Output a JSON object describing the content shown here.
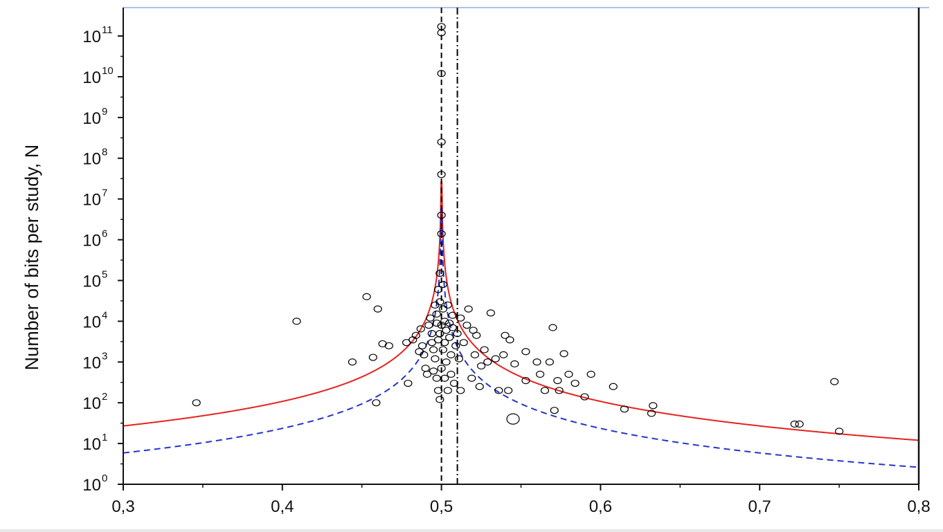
{
  "chart_data": {
    "type": "scatter",
    "title": "",
    "xlabel": "",
    "ylabel": "Number of bits per study, N",
    "xlim": [
      0.3,
      0.8
    ],
    "ylim": [
      1,
      100000000000
    ],
    "y_scale": "log",
    "x_ticks": [
      {
        "value": 0.3,
        "label": "0,3"
      },
      {
        "value": 0.4,
        "label": "0,4"
      },
      {
        "value": 0.5,
        "label": "0,5"
      },
      {
        "value": 0.6,
        "label": "0,6"
      },
      {
        "value": 0.7,
        "label": "0,7"
      },
      {
        "value": 0.8,
        "label": "0,8"
      }
    ],
    "y_ticks": [
      {
        "value": 1,
        "base": "10",
        "exp": "0"
      },
      {
        "value": 10,
        "base": "10",
        "exp": "1"
      },
      {
        "value": 100,
        "base": "10",
        "exp": "2"
      },
      {
        "value": 1000,
        "base": "10",
        "exp": "3"
      },
      {
        "value": 10000,
        "base": "10",
        "exp": "4"
      },
      {
        "value": 100000,
        "base": "10",
        "exp": "5"
      },
      {
        "value": 1000000,
        "base": "10",
        "exp": "6"
      },
      {
        "value": 10000000,
        "base": "10",
        "exp": "7"
      },
      {
        "value": 100000000,
        "base": "10",
        "exp": "8"
      },
      {
        "value": 1000000000,
        "base": "10",
        "exp": "9"
      },
      {
        "value": 10000000000,
        "base": "10",
        "exp": "10"
      },
      {
        "value": 100000000000,
        "base": "10",
        "exp": "11"
      }
    ],
    "grid": false,
    "vertical_lines": [
      {
        "x": 0.5,
        "style": "dashed",
        "color": "#000000"
      },
      {
        "x": 0.51,
        "style": "dash-dot",
        "color": "#000000"
      }
    ],
    "curves": [
      {
        "style": "solid",
        "color": "#e8211d",
        "center": 0.5,
        "k": 1.08
      },
      {
        "style": "dashed",
        "color": "#2233cc",
        "center": 0.5,
        "k": 0.235
      }
    ],
    "series": [
      {
        "marker": "open-circle",
        "color": "#000000",
        "points": [
          [
            0.346,
            100
          ],
          [
            0.409,
            10000
          ],
          [
            0.444,
            1000
          ],
          [
            0.453,
            40000
          ],
          [
            0.457,
            1300
          ],
          [
            0.459,
            100
          ],
          [
            0.46,
            20000
          ],
          [
            0.463,
            2800
          ],
          [
            0.467,
            2500
          ],
          [
            0.479,
            300
          ],
          [
            0.478,
            3000
          ],
          [
            0.482,
            3500
          ],
          [
            0.484,
            4500
          ],
          [
            0.486,
            1800
          ],
          [
            0.487,
            6500
          ],
          [
            0.488,
            2500
          ],
          [
            0.489,
            1500
          ],
          [
            0.49,
            700
          ],
          [
            0.491,
            500
          ],
          [
            0.492,
            8000
          ],
          [
            0.493,
            12000
          ],
          [
            0.494,
            3000
          ],
          [
            0.494,
            5000
          ],
          [
            0.495,
            600
          ],
          [
            0.495,
            2000
          ],
          [
            0.496,
            25000
          ],
          [
            0.496,
            1200
          ],
          [
            0.497,
            9000
          ],
          [
            0.497,
            400
          ],
          [
            0.497,
            15000
          ],
          [
            0.498,
            3500
          ],
          [
            0.498,
            200
          ],
          [
            0.498,
            60000
          ],
          [
            0.499,
            120
          ],
          [
            0.499,
            5000
          ],
          [
            0.499,
            30000
          ],
          [
            0.499,
            150000
          ],
          [
            0.5,
            1400000
          ],
          [
            0.5,
            8000
          ],
          [
            0.5,
            700
          ],
          [
            0.5,
            120000000000
          ],
          [
            0.5,
            170000000000
          ],
          [
            0.5,
            12000000000
          ],
          [
            0.5,
            250000000
          ],
          [
            0.5,
            40000000
          ],
          [
            0.5,
            4000000
          ],
          [
            0.501,
            2000
          ],
          [
            0.501,
            20000
          ],
          [
            0.501,
            80000
          ],
          [
            0.502,
            3000
          ],
          [
            0.502,
            400
          ],
          [
            0.502,
            10000
          ],
          [
            0.503,
            6000
          ],
          [
            0.503,
            1000
          ],
          [
            0.504,
            25000
          ],
          [
            0.504,
            200
          ],
          [
            0.505,
            4000
          ],
          [
            0.505,
            9000
          ],
          [
            0.506,
            1500
          ],
          [
            0.506,
            500
          ],
          [
            0.507,
            7000
          ],
          [
            0.507,
            14000
          ],
          [
            0.508,
            300
          ],
          [
            0.509,
            2500
          ],
          [
            0.51,
            5000
          ],
          [
            0.511,
            1200
          ],
          [
            0.512,
            12000
          ],
          [
            0.512,
            200
          ],
          [
            0.514,
            3000
          ],
          [
            0.516,
            8000
          ],
          [
            0.517,
            20000
          ],
          [
            0.519,
            400
          ],
          [
            0.52,
            6000
          ],
          [
            0.521,
            1500
          ],
          [
            0.522,
            4500
          ],
          [
            0.524,
            250
          ],
          [
            0.525,
            800
          ],
          [
            0.527,
            2000
          ],
          [
            0.529,
            1000
          ],
          [
            0.531,
            16000
          ],
          [
            0.534,
            1200
          ],
          [
            0.536,
            200
          ],
          [
            0.539,
            1500
          ],
          [
            0.54,
            4500
          ],
          [
            0.542,
            200
          ],
          [
            0.543,
            3500
          ],
          [
            0.545,
            40
          ],
          [
            0.546,
            900
          ],
          [
            0.553,
            1800
          ],
          [
            0.553,
            350
          ],
          [
            0.56,
            1000
          ],
          [
            0.562,
            500
          ],
          [
            0.565,
            200
          ],
          [
            0.568,
            1000
          ],
          [
            0.57,
            7000
          ],
          [
            0.571,
            65
          ],
          [
            0.573,
            350
          ],
          [
            0.574,
            200
          ],
          [
            0.577,
            1600
          ],
          [
            0.58,
            500
          ],
          [
            0.584,
            300
          ],
          [
            0.59,
            140
          ],
          [
            0.594,
            500
          ],
          [
            0.608,
            250
          ],
          [
            0.615,
            70
          ],
          [
            0.632,
            55
          ],
          [
            0.633,
            85
          ],
          [
            0.722,
            30
          ],
          [
            0.725,
            30
          ],
          [
            0.747,
            330
          ],
          [
            0.75,
            20
          ]
        ]
      }
    ]
  }
}
